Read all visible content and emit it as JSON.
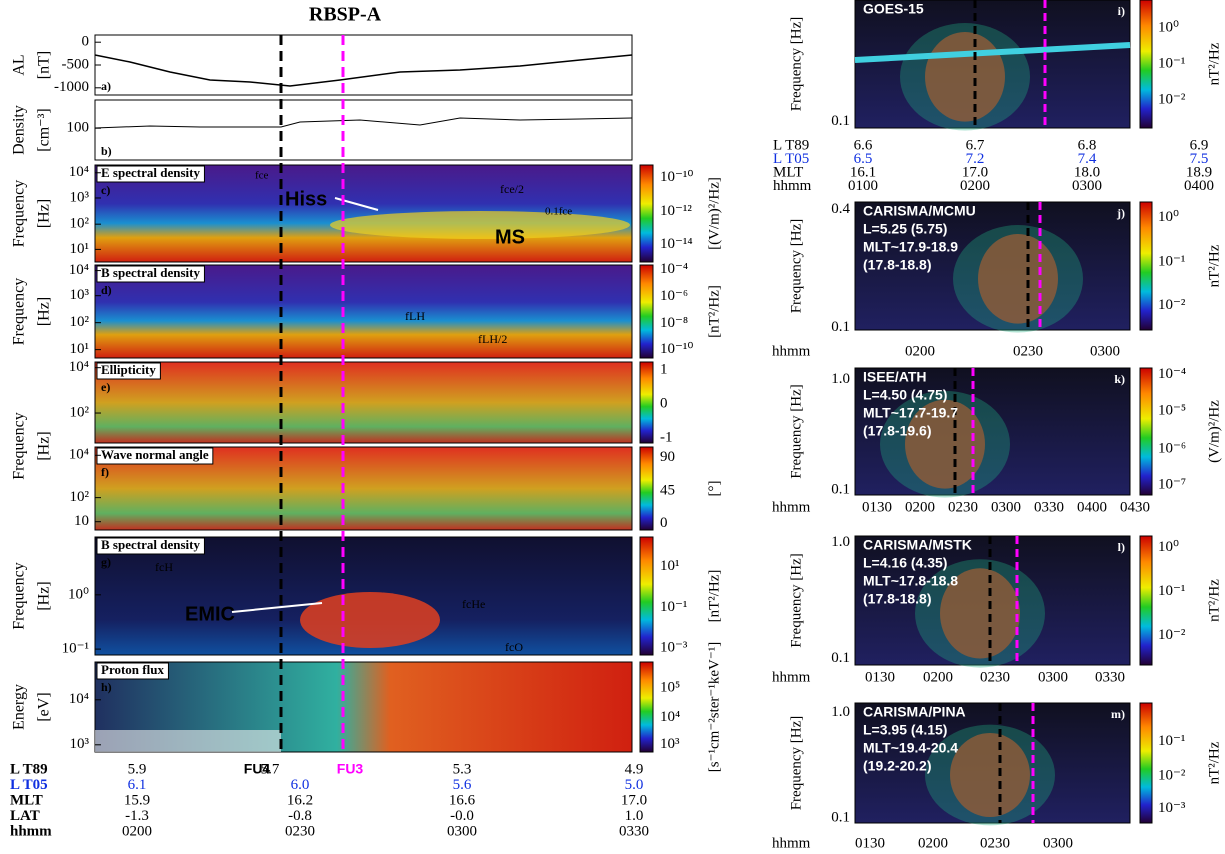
{
  "title": "RBSP-A",
  "left_panels": [
    {
      "label": "a)",
      "ylabel": [
        "AL",
        "[nT]"
      ],
      "yticks": [
        "0",
        "-500",
        "-1000"
      ]
    },
    {
      "label": "b)",
      "ylabel": [
        "Density",
        "[cm⁻³]"
      ],
      "yticks": [
        "100"
      ]
    },
    {
      "label": "c)",
      "box": "E spectral density",
      "ylabel": [
        "Frequency",
        "[Hz]"
      ],
      "yticks": [
        "10⁴",
        "10³",
        "10²",
        "10¹"
      ],
      "colorbar_ticks": [
        "10⁻¹⁰",
        "10⁻¹²",
        "10⁻¹⁴"
      ],
      "colorbar_unit": "[(V/m)²/Hz]",
      "annotations": [
        "fce",
        "fce/2",
        "0.1fce",
        "Hiss",
        "MS"
      ]
    },
    {
      "label": "d)",
      "box": "B spectral density",
      "ylabel": [
        "Frequency",
        "[Hz]"
      ],
      "yticks": [
        "10⁴",
        "10³",
        "10²",
        "10¹"
      ],
      "colorbar_ticks": [
        "10⁻⁴",
        "10⁻⁶",
        "10⁻⁸",
        "10⁻¹⁰"
      ],
      "colorbar_unit": "[nT²/Hz]",
      "annotations": [
        "fLH",
        "fLH/2"
      ]
    },
    {
      "label": "e)",
      "box": "Ellipticity",
      "ylabel": [
        "Frequency",
        "[Hz]"
      ],
      "yticks": [
        "10⁴",
        "10²"
      ],
      "colorbar_ticks": [
        "1",
        "0",
        "-1"
      ]
    },
    {
      "label": "f)",
      "box": "Wave normal angle",
      "yticks": [
        "10⁴",
        "10²",
        "10"
      ],
      "colorbar_ticks": [
        "90",
        "45",
        "0"
      ],
      "colorbar_unit": "[°]"
    },
    {
      "label": "g)",
      "box": "B spectral density",
      "ylabel": [
        "Frequency",
        "[Hz]"
      ],
      "yticks": [
        "10⁰",
        "10⁻¹"
      ],
      "colorbar_ticks": [
        "10¹",
        "10⁻¹",
        "10⁻³"
      ],
      "colorbar_unit": "[nT²/Hz]",
      "annotations": [
        "fcH",
        "fcHe",
        "fcO",
        "EMIC"
      ]
    },
    {
      "label": "h)",
      "box": "Proton flux",
      "ylabel": [
        "Energy",
        "[eV]"
      ],
      "yticks": [
        "10⁴",
        "10³"
      ],
      "colorbar_ticks": [
        "10⁵",
        "10⁴",
        "10³"
      ],
      "colorbar_unit": "[s⁻¹cm⁻²ster⁻¹keV⁻¹]"
    }
  ],
  "left_table": {
    "markers": [
      "FU4",
      "FU3"
    ],
    "rows": [
      {
        "name": "L T89",
        "values": [
          "5.9",
          "5.7",
          "5.3",
          "4.9"
        ]
      },
      {
        "name": "L T05",
        "values": [
          "6.1",
          "6.0",
          "5.6",
          "5.0"
        ]
      },
      {
        "name": "MLT",
        "values": [
          "15.9",
          "16.2",
          "16.6",
          "17.0"
        ]
      },
      {
        "name": "LAT",
        "values": [
          "-1.3",
          "-0.8",
          "-0.0",
          "1.0"
        ]
      },
      {
        "name": "hhmm",
        "values": [
          "0200",
          "0230",
          "0300",
          "0330"
        ]
      }
    ]
  },
  "right_panels": [
    {
      "label": "i)",
      "lines": [
        "GOES-15"
      ],
      "ylabel": "Frequency [Hz]",
      "yticks": [
        "0.1"
      ],
      "colorbar_ticks": [
        "10⁰",
        "10⁻¹",
        "10⁻²"
      ],
      "colorbar_unit": "nT²/Hz",
      "table": [
        {
          "name": "L T89",
          "values": [
            "6.6",
            "6.7",
            "6.8",
            "6.9"
          ]
        },
        {
          "name": "L T05",
          "values": [
            "6.5",
            "7.2",
            "7.4",
            "7.5"
          ]
        },
        {
          "name": "MLT",
          "values": [
            "16.1",
            "17.0",
            "18.0",
            "18.9"
          ]
        },
        {
          "name": "hhmm",
          "values": [
            "0100",
            "0200",
            "0300",
            "0400"
          ]
        }
      ]
    },
    {
      "label": "j)",
      "lines": [
        "CARISMA/MCMU",
        "L=5.25 (5.75)",
        "MLT~17.9-18.9",
        "(17.8-18.8)"
      ],
      "ylabel": "Frequency [Hz]",
      "yticks": [
        "0.4",
        "0.1"
      ],
      "colorbar_ticks": [
        "10⁰",
        "10⁻¹",
        "10⁻²"
      ],
      "colorbar_unit": "nT²/Hz",
      "xlabel": "hhmm",
      "xticks": [
        "0200",
        "0230",
        "0300"
      ]
    },
    {
      "label": "k)",
      "lines": [
        "ISEE/ATH",
        "L=4.50 (4.75)",
        "MLT~17.7-19.7",
        "(17.8-19.6)"
      ],
      "ylabel": "Frequency [Hz]",
      "yticks": [
        "1.0",
        "0.1"
      ],
      "colorbar_ticks": [
        "10⁻⁴",
        "10⁻⁵",
        "10⁻⁶",
        "10⁻⁷"
      ],
      "colorbar_unit": "(V/m)²/Hz",
      "xlabel": "hhmm",
      "xticks": [
        "0130",
        "0200",
        "0230",
        "0300",
        "0330",
        "0400",
        "0430"
      ]
    },
    {
      "label": "l)",
      "lines": [
        "CARISMA/MSTK",
        "L=4.16 (4.35)",
        "MLT~17.8-18.8",
        "(17.8-18.8)"
      ],
      "ylabel": "Frequency [Hz]",
      "yticks": [
        "1.0",
        "0.1"
      ],
      "colorbar_ticks": [
        "10⁰",
        "10⁻¹",
        "10⁻²"
      ],
      "colorbar_unit": "nT²/Hz",
      "xlabel": "hhmm",
      "xticks": [
        "0130",
        "0200",
        "0230",
        "0300",
        "0330"
      ]
    },
    {
      "label": "m)",
      "lines": [
        "CARISMA/PINA",
        "L=3.95 (4.15)",
        "MLT~19.4-20.4",
        "(19.2-20.2)"
      ],
      "ylabel": "Frequency [Hz]",
      "yticks": [
        "1.0",
        "0.1"
      ],
      "colorbar_ticks": [
        "10⁻¹",
        "10⁻²",
        "10⁻³"
      ],
      "colorbar_unit": "nT²/Hz",
      "xlabel": "hhmm",
      "xticks": [
        "0130",
        "0200",
        "0230",
        "0300"
      ]
    }
  ]
}
